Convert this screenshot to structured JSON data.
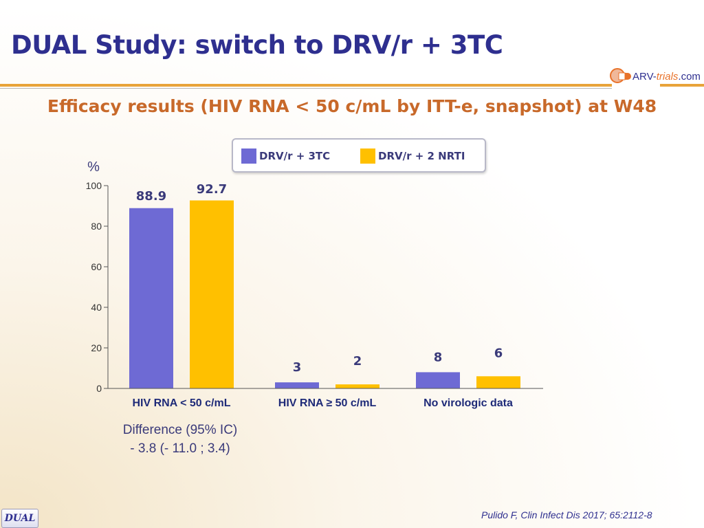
{
  "slide": {
    "title": "DUAL Study: switch to DRV/r + 3TC",
    "subtitle": "Efficacy results (HIV RNA < 50 c/mL by ITT-e, snapshot) at W48",
    "logo": {
      "brand": "ARV-",
      "brand_highlight": "trials",
      "brand_suffix": ".com"
    },
    "citation": "Pulido F, Clin Infect Dis 2017; 65:2112-8",
    "badge": "DUAL",
    "difference": {
      "label": "Difference (95% IC)",
      "value": "- 3.8 (- 11.0 ; 3.4)"
    }
  },
  "colors": {
    "drv_3tc": "#6e6ad4",
    "drv_2nrti": "#ffc000",
    "axis": "#555555",
    "label": "#3a3a7a",
    "value_label": "#3a3a7a"
  },
  "chart_data": {
    "type": "bar",
    "ylabel": "%",
    "ylim": [
      0,
      100
    ],
    "yticks": [
      0,
      20,
      40,
      60,
      80,
      100
    ],
    "categories": [
      "HIV RNA < 50 c/mL",
      "HIV RNA ≥ 50 c/mL",
      "No virologic data"
    ],
    "series": [
      {
        "name": "DRV/r + 3TC",
        "values": [
          88.9,
          3,
          8
        ],
        "labels": [
          "88.9",
          "3",
          "8"
        ]
      },
      {
        "name": "DRV/r + 2 NRTI",
        "values": [
          92.7,
          2,
          6
        ],
        "labels": [
          "92.7",
          "2",
          "6"
        ]
      }
    ],
    "legend": "top"
  }
}
